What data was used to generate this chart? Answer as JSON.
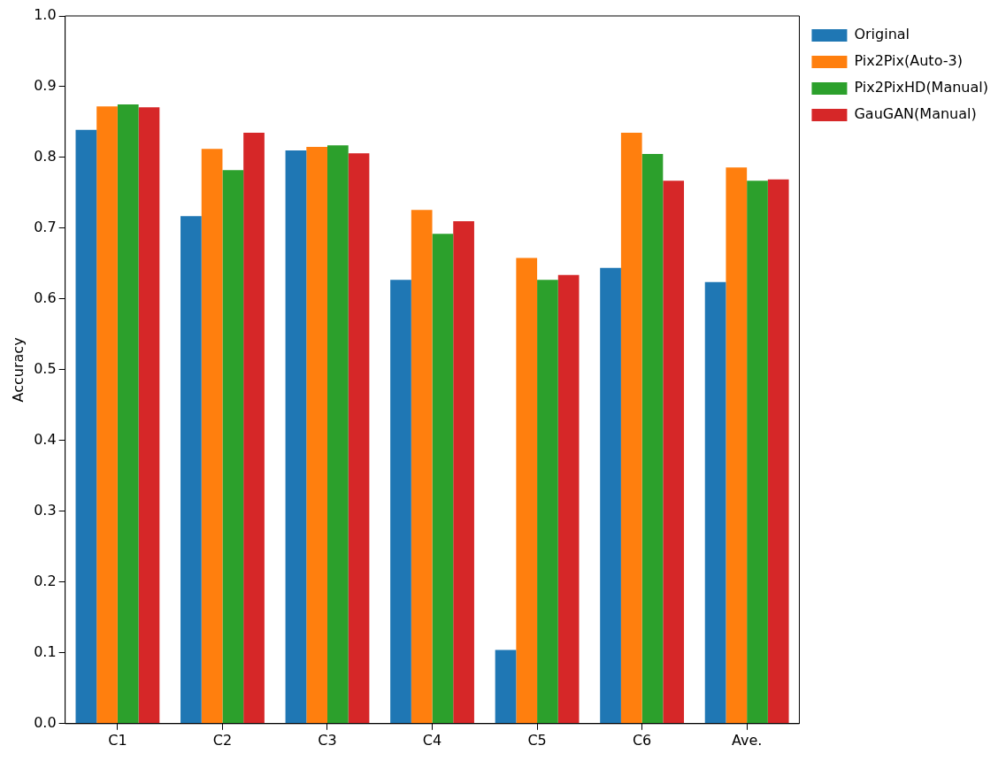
{
  "chart_data": {
    "type": "bar",
    "ylabel": "Accuracy",
    "categories": [
      "C1",
      "C2",
      "C3",
      "C4",
      "C5",
      "C6",
      "Ave."
    ],
    "series": [
      {
        "name": "Original",
        "color": "#1f77b4",
        "values": [
          0.839,
          0.717,
          0.81,
          0.627,
          0.104,
          0.644,
          0.624
        ]
      },
      {
        "name": "Pix2Pix(Auto-3)",
        "color": "#ff7f0e",
        "values": [
          0.872,
          0.812,
          0.815,
          0.726,
          0.658,
          0.835,
          0.786
        ]
      },
      {
        "name": "Pix2PixHD(Manual)",
        "color": "#2ca02c",
        "values": [
          0.875,
          0.782,
          0.817,
          0.692,
          0.627,
          0.805,
          0.767
        ]
      },
      {
        "name": "GauGAN(Manual)",
        "color": "#d62728",
        "values": [
          0.871,
          0.835,
          0.806,
          0.71,
          0.634,
          0.767,
          0.769
        ]
      }
    ],
    "ylim": [
      0,
      1
    ],
    "yticks": [
      {
        "value": 0,
        "label": "0.0"
      },
      0.1,
      0.2,
      0.3,
      0.4,
      0.5,
      0.6,
      0.7,
      0.8,
      0.9,
      {
        "value": 1,
        "label": "1.0"
      }
    ],
    "grid": false,
    "legend": "top right"
  }
}
